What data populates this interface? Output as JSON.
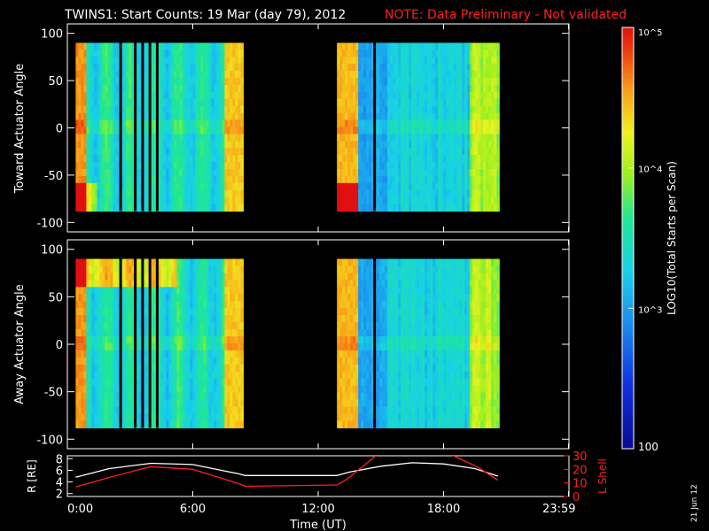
{
  "header": {
    "title": "TWINS1: Start Counts: 19 Mar (day  79), 2012",
    "note": "NOTE: Data Preliminary - Not validated",
    "note_color": "#ff2020"
  },
  "side_date": "21 Jun 12",
  "colorbar": {
    "label": "LOG10(Total Starts per Scan)",
    "ticks": [
      {
        "value": 100,
        "label": "100"
      },
      {
        "value": 1000,
        "label": "10^3"
      },
      {
        "value": 10000,
        "label": "10^4"
      },
      {
        "value": 100000,
        "label": "10^5"
      }
    ],
    "range": [
      100,
      100000
    ],
    "scale": "log"
  },
  "chart_data": [
    {
      "type": "heatmap",
      "name": "toward",
      "ylabel": "Toward Actuator Angle",
      "ylim": [
        -110,
        110
      ],
      "yticks": [
        -100,
        -50,
        0,
        50,
        100
      ],
      "xlim_hours": [
        0,
        24
      ],
      "data_intervals_hours": [
        [
          0.4,
          8.4
        ],
        [
          12.9,
          20.6
        ]
      ],
      "gap_lines_hours": [
        2.55,
        3.25,
        3.6,
        3.95,
        4.3,
        14.7
      ],
      "angle_range": [
        -88,
        90
      ]
    },
    {
      "type": "heatmap",
      "name": "away",
      "ylabel": "Away Actuator Angle",
      "ylim": [
        -110,
        110
      ],
      "yticks": [
        -100,
        -50,
        0,
        50,
        100
      ],
      "xlim_hours": [
        0,
        24
      ],
      "data_intervals_hours": [
        [
          0.4,
          8.4
        ],
        [
          12.9,
          20.6
        ]
      ],
      "gap_lines_hours": [
        2.55,
        3.25,
        3.6,
        3.95,
        4.3,
        14.7
      ],
      "angle_range": [
        -88,
        90
      ]
    },
    {
      "type": "line",
      "name": "orbit",
      "xlabel": "Time (UT)",
      "ylabel_left": "R [RE]",
      "ylabel_right": "L Shell",
      "left_ylim": [
        1.5,
        8.5
      ],
      "left_yticks": [
        2,
        4,
        6,
        8
      ],
      "right_ylim": [
        0,
        30
      ],
      "right_yticks": [
        0,
        10,
        20,
        30
      ],
      "xticks": [
        {
          "hour": 0,
          "label": "0:00"
        },
        {
          "hour": 6,
          "label": "6:00"
        },
        {
          "hour": 12,
          "label": "12:00"
        },
        {
          "hour": 18,
          "label": "18:00"
        },
        {
          "hour": 23.98,
          "label": "23:59"
        }
      ],
      "series": [
        {
          "axis": "left",
          "color": "#ffffff",
          "points": [
            [
              0.4,
              4.8
            ],
            [
              2,
              6.3
            ],
            [
              4,
              7.2
            ],
            [
              6,
              7.0
            ],
            [
              8.2,
              5.4
            ],
            [
              8.5,
              5.1
            ],
            [
              12.9,
              5.1
            ],
            [
              13.5,
              5.7
            ],
            [
              15,
              6.7
            ],
            [
              16.5,
              7.3
            ],
            [
              18,
              7.1
            ],
            [
              19.5,
              6.3
            ],
            [
              20.6,
              5.0
            ]
          ]
        },
        {
          "axis": "right",
          "color": "#ff2020",
          "points": [
            [
              0.4,
              7
            ],
            [
              2,
              14
            ],
            [
              4,
              22
            ],
            [
              6,
              20
            ],
            [
              8.3,
              9
            ],
            [
              8.5,
              7.5
            ],
            [
              12.9,
              8.5
            ],
            [
              13.4,
              13
            ],
            [
              14.8,
              30.5
            ],
            [
              18.4,
              30.5
            ],
            [
              19.6,
              22
            ],
            [
              20.6,
              12
            ]
          ]
        }
      ]
    }
  ]
}
